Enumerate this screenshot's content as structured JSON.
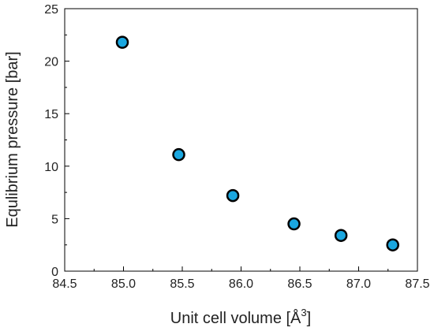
{
  "chart_data": {
    "type": "scatter",
    "title": "",
    "xlabel": "Unit cell volume [Å",
    "xlabel_superscript": "3",
    "xlabel_suffix": "]",
    "ylabel": "Equlibrium pressure [bar]",
    "xlim": [
      84.5,
      87.5
    ],
    "ylim": [
      0,
      25
    ],
    "xticks": [
      84.5,
      85.0,
      85.5,
      86.0,
      86.5,
      87.0,
      87.5
    ],
    "xtick_labels": [
      "84.5",
      "85.0",
      "85.5",
      "86.0",
      "86.5",
      "87.0",
      "87.5"
    ],
    "yticks": [
      0,
      5,
      10,
      15,
      20,
      25
    ],
    "ytick_labels": [
      "0",
      "5",
      "10",
      "15",
      "20",
      "25"
    ],
    "grid": false,
    "legend": "none",
    "marker_color": "#1aa7e0",
    "marker_edge_color": "#000000",
    "series": [
      {
        "x": [
          84.99,
          85.47,
          85.93,
          86.45,
          86.85,
          87.29
        ],
        "y": [
          21.8,
          11.1,
          7.2,
          4.5,
          3.4,
          2.5
        ]
      }
    ]
  }
}
